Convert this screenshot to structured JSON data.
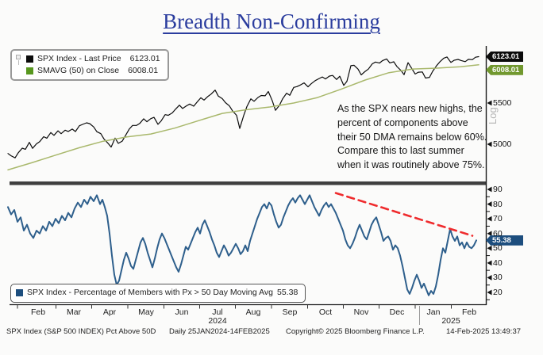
{
  "title": "Breadth Non-Confirming",
  "top_panel": {
    "legend": [
      {
        "swatch_color": "#0b0b0b",
        "label": "SPX Index - Last Price",
        "value": "6123.01"
      },
      {
        "swatch_color": "#57971e",
        "label": "SMAVG (50)  on Close",
        "value": "6008.01"
      }
    ],
    "axis": {
      "scale_label": "Log",
      "ticks": [
        {
          "label": "5500",
          "value": 5500
        },
        {
          "label": "5000",
          "value": 5000
        }
      ]
    },
    "badges": [
      {
        "text": "6123.01",
        "value": 6123.01,
        "bg": "#0b0b0b"
      },
      {
        "text": "6008.01",
        "value": 6008.01,
        "bg": "#71982e"
      }
    ],
    "annotation": "As the SPX nears new highs, the\npercent of components above\ntheir 50 DMA remains below 60%.\nCompare this to last summer\nwhen it was routinely above 75%."
  },
  "bottom_panel": {
    "legend": {
      "swatch_color": "#1d4e7e",
      "label": "SPX Index - Percentage of Members with Px > 50 Day Moving Avg",
      "value": "55.38"
    },
    "axis": {
      "ticks": [
        90,
        80,
        70,
        60,
        50,
        40,
        30,
        20
      ]
    },
    "badge": {
      "text": "55.38",
      "value": 55.38,
      "bg": "#1d4e7e"
    }
  },
  "x_axis": {
    "months": [
      "Feb",
      "Mar",
      "Apr",
      "May",
      "Jun",
      "Jul",
      "Aug",
      "Sep",
      "Oct",
      "Nov",
      "Dec",
      "Jan",
      "Feb"
    ],
    "years": [
      {
        "label": "2024"
      },
      {
        "label": "2025"
      }
    ]
  },
  "footer": {
    "left": "SPX Index (S&P 500 INDEX) Pct Above 50D",
    "daily": "Daily 25JAN2024-14FEB2025",
    "copyright": "Copyright© 2025 Bloomberg Finance L.P.",
    "datetime": "14-Feb-2025 13:49:37"
  },
  "chart_data": [
    {
      "type": "line",
      "panel": "top",
      "name": "SPX Index - Last Price",
      "color": "#0b0b0b",
      "y_scale": "log",
      "ylim": [
        4580,
        6265
      ],
      "visible_ticks": [
        5000,
        5500
      ],
      "last_value": 6123.01,
      "points": [
        [
          10,
          4894
        ],
        [
          14,
          4868
        ],
        [
          19,
          4845
        ],
        [
          23,
          4902
        ],
        [
          28,
          4954
        ],
        [
          32,
          4942
        ],
        [
          37,
          5022
        ],
        [
          41,
          4953
        ],
        [
          46,
          5005
        ],
        [
          50,
          5029
        ],
        [
          55,
          5088
        ],
        [
          59,
          5070
        ],
        [
          64,
          5137
        ],
        [
          68,
          5104
        ],
        [
          73,
          5157
        ],
        [
          77,
          5123
        ],
        [
          82,
          5165
        ],
        [
          86,
          5150
        ],
        [
          91,
          5178
        ],
        [
          95,
          5149
        ],
        [
          100,
          5218
        ],
        [
          104,
          5234
        ],
        [
          109,
          5254
        ],
        [
          113,
          5244
        ],
        [
          118,
          5204
        ],
        [
          122,
          5147
        ],
        [
          127,
          5123
        ],
        [
          131,
          5061
        ],
        [
          136,
          5011
        ],
        [
          140,
          4967
        ],
        [
          145,
          5071
        ],
        [
          149,
          5010
        ],
        [
          154,
          5036
        ],
        [
          158,
          5100
        ],
        [
          163,
          5181
        ],
        [
          167,
          5222
        ],
        [
          172,
          5222
        ],
        [
          176,
          5246
        ],
        [
          181,
          5303
        ],
        [
          185,
          5267
        ],
        [
          190,
          5305
        ],
        [
          194,
          5321
        ],
        [
          199,
          5235
        ],
        [
          203,
          5277
        ],
        [
          208,
          5354
        ],
        [
          212,
          5346
        ],
        [
          217,
          5375
        ],
        [
          221,
          5421
        ],
        [
          226,
          5473
        ],
        [
          230,
          5431
        ],
        [
          235,
          5465
        ],
        [
          239,
          5487
        ],
        [
          244,
          5460
        ],
        [
          248,
          5509
        ],
        [
          253,
          5567
        ],
        [
          257,
          5537
        ],
        [
          262,
          5585
        ],
        [
          266,
          5615
        ],
        [
          271,
          5667
        ],
        [
          275,
          5588
        ],
        [
          280,
          5556
        ],
        [
          284,
          5505
        ],
        [
          289,
          5463
        ],
        [
          293,
          5399
        ],
        [
          298,
          5346
        ],
        [
          302,
          5186
        ],
        [
          307,
          5344
        ],
        [
          311,
          5455
        ],
        [
          316,
          5554
        ],
        [
          320,
          5522
        ],
        [
          325,
          5571
        ],
        [
          329,
          5597
        ],
        [
          334,
          5592
        ],
        [
          338,
          5648
        ],
        [
          343,
          5528
        ],
        [
          347,
          5408
        ],
        [
          352,
          5471
        ],
        [
          356,
          5554
        ],
        [
          361,
          5626
        ],
        [
          365,
          5599
        ],
        [
          370,
          5702
        ],
        [
          374,
          5713
        ],
        [
          379,
          5738
        ],
        [
          383,
          5762
        ],
        [
          388,
          5710
        ],
        [
          392,
          5751
        ],
        [
          397,
          5792
        ],
        [
          401,
          5815
        ],
        [
          406,
          5842
        ],
        [
          410,
          5815
        ],
        [
          415,
          5854
        ],
        [
          419,
          5862
        ],
        [
          424,
          5808
        ],
        [
          428,
          5852
        ],
        [
          433,
          5729
        ],
        [
          437,
          5783
        ],
        [
          442,
          5996
        ],
        [
          446,
          6001
        ],
        [
          451,
          5949
        ],
        [
          455,
          5870
        ],
        [
          460,
          5917
        ],
        [
          464,
          5949
        ],
        [
          469,
          6022
        ],
        [
          473,
          6047
        ],
        [
          478,
          6032
        ],
        [
          482,
          6068
        ],
        [
          487,
          6090
        ],
        [
          491,
          6034
        ],
        [
          496,
          6051
        ],
        [
          500,
          5984
        ],
        [
          505,
          5931
        ],
        [
          509,
          5872
        ],
        [
          514,
          6038
        ],
        [
          518,
          5970
        ],
        [
          523,
          5882
        ],
        [
          527,
          5906
        ],
        [
          532,
          5910
        ],
        [
          536,
          5827
        ],
        [
          541,
          5836
        ],
        [
          545,
          5918
        ],
        [
          550,
          5997
        ],
        [
          554,
          6049
        ],
        [
          559,
          6101
        ],
        [
          563,
          6118
        ],
        [
          568,
          6041
        ],
        [
          572,
          6071
        ],
        [
          577,
          6083
        ],
        [
          581,
          6068
        ],
        [
          586,
          6052
        ],
        [
          590,
          6084
        ],
        [
          595,
          6080
        ],
        [
          599,
          6115
        ],
        [
          603,
          6123
        ]
      ]
    },
    {
      "type": "line",
      "panel": "top",
      "name": "SMAVG (50) on Close",
      "color": "#a9b86c",
      "y_scale": "log",
      "last_value": 6008.01,
      "points": [
        [
          10,
          4712
        ],
        [
          40,
          4790
        ],
        [
          70,
          4875
        ],
        [
          100,
          4960
        ],
        [
          130,
          5035
        ],
        [
          160,
          5085
        ],
        [
          190,
          5120
        ],
        [
          220,
          5190
        ],
        [
          250,
          5280
        ],
        [
          280,
          5370
        ],
        [
          310,
          5415
        ],
        [
          340,
          5450
        ],
        [
          370,
          5500
        ],
        [
          400,
          5570
        ],
        [
          430,
          5680
        ],
        [
          460,
          5800
        ],
        [
          490,
          5900
        ],
        [
          520,
          5950
        ],
        [
          550,
          5962
        ],
        [
          580,
          5982
        ],
        [
          603,
          6008
        ]
      ]
    },
    {
      "type": "line",
      "panel": "bottom",
      "name": "SPX Index - Percentage of Members with Px > 50 Day Moving Avg",
      "color": "#2e5f8c",
      "ylim": [
        12,
        93
      ],
      "last_value": 55.38,
      "points": [
        [
          10,
          78
        ],
        [
          14,
          73
        ],
        [
          18,
          76
        ],
        [
          22,
          68
        ],
        [
          26,
          71
        ],
        [
          30,
          62
        ],
        [
          34,
          66
        ],
        [
          38,
          60
        ],
        [
          42,
          57
        ],
        [
          46,
          62
        ],
        [
          50,
          60
        ],
        [
          54,
          65
        ],
        [
          58,
          62
        ],
        [
          62,
          68
        ],
        [
          66,
          65
        ],
        [
          70,
          70
        ],
        [
          74,
          67
        ],
        [
          78,
          72
        ],
        [
          82,
          69
        ],
        [
          86,
          74
        ],
        [
          90,
          71
        ],
        [
          94,
          77
        ],
        [
          98,
          81
        ],
        [
          102,
          78
        ],
        [
          106,
          83
        ],
        [
          110,
          80
        ],
        [
          114,
          85
        ],
        [
          118,
          82
        ],
        [
          122,
          86
        ],
        [
          126,
          80
        ],
        [
          129,
          83
        ],
        [
          132,
          78
        ],
        [
          135,
          72
        ],
        [
          138,
          60
        ],
        [
          141,
          45
        ],
        [
          144,
          32
        ],
        [
          147,
          25
        ],
        [
          150,
          28
        ],
        [
          153,
          35
        ],
        [
          156,
          42
        ],
        [
          159,
          47
        ],
        [
          162,
          43
        ],
        [
          165,
          38
        ],
        [
          168,
          36
        ],
        [
          171,
          42
        ],
        [
          174,
          48
        ],
        [
          177,
          54
        ],
        [
          180,
          57
        ],
        [
          183,
          53
        ],
        [
          186,
          47
        ],
        [
          189,
          42
        ],
        [
          192,
          37
        ],
        [
          195,
          43
        ],
        [
          198,
          50
        ],
        [
          201,
          56
        ],
        [
          204,
          60
        ],
        [
          207,
          57
        ],
        [
          210,
          53
        ],
        [
          213,
          49
        ],
        [
          216,
          45
        ],
        [
          219,
          41
        ],
        [
          222,
          37
        ],
        [
          225,
          34
        ],
        [
          228,
          39
        ],
        [
          231,
          45
        ],
        [
          234,
          51
        ],
        [
          237,
          49
        ],
        [
          240,
          53
        ],
        [
          243,
          57
        ],
        [
          246,
          61
        ],
        [
          249,
          64
        ],
        [
          252,
          60
        ],
        [
          255,
          66
        ],
        [
          258,
          69
        ],
        [
          261,
          65
        ],
        [
          264,
          61
        ],
        [
          267,
          56
        ],
        [
          270,
          52
        ],
        [
          273,
          47
        ],
        [
          276,
          44
        ],
        [
          279,
          48
        ],
        [
          282,
          52
        ],
        [
          285,
          49
        ],
        [
          288,
          45
        ],
        [
          291,
          47
        ],
        [
          294,
          50
        ],
        [
          297,
          53
        ],
        [
          300,
          50
        ],
        [
          303,
          46
        ],
        [
          306,
          48
        ],
        [
          309,
          52
        ],
        [
          312,
          48
        ],
        [
          315,
          55
        ],
        [
          318,
          60
        ],
        [
          321,
          65
        ],
        [
          324,
          70
        ],
        [
          327,
          74
        ],
        [
          330,
          78
        ],
        [
          333,
          80
        ],
        [
          336,
          77
        ],
        [
          339,
          81
        ],
        [
          342,
          79
        ],
        [
          345,
          73
        ],
        [
          348,
          68
        ],
        [
          351,
          64
        ],
        [
          354,
          66
        ],
        [
          357,
          71
        ],
        [
          360,
          75
        ],
        [
          363,
          79
        ],
        [
          366,
          82
        ],
        [
          369,
          84
        ],
        [
          372,
          81
        ],
        [
          375,
          84
        ],
        [
          378,
          86
        ],
        [
          381,
          83
        ],
        [
          384,
          80
        ],
        [
          387,
          83
        ],
        [
          390,
          86
        ],
        [
          393,
          82
        ],
        [
          396,
          78
        ],
        [
          399,
          75
        ],
        [
          402,
          72
        ],
        [
          405,
          76
        ],
        [
          408,
          79
        ],
        [
          411,
          81
        ],
        [
          414,
          78
        ],
        [
          417,
          80
        ],
        [
          420,
          77
        ],
        [
          423,
          74
        ],
        [
          426,
          70
        ],
        [
          429,
          66
        ],
        [
          432,
          62
        ],
        [
          435,
          56
        ],
        [
          438,
          52
        ],
        [
          441,
          50
        ],
        [
          444,
          53
        ],
        [
          447,
          57
        ],
        [
          450,
          62
        ],
        [
          453,
          66
        ],
        [
          456,
          62
        ],
        [
          459,
          58
        ],
        [
          462,
          56
        ],
        [
          465,
          61
        ],
        [
          468,
          66
        ],
        [
          471,
          69
        ],
        [
          474,
          71
        ],
        [
          477,
          66
        ],
        [
          480,
          61
        ],
        [
          483,
          55
        ],
        [
          486,
          57
        ],
        [
          489,
          58
        ],
        [
          492,
          55
        ],
        [
          495,
          49
        ],
        [
          498,
          52
        ],
        [
          501,
          50
        ],
        [
          504,
          45
        ],
        [
          507,
          38
        ],
        [
          510,
          30
        ],
        [
          513,
          22
        ],
        [
          516,
          19
        ],
        [
          519,
          23
        ],
        [
          522,
          28
        ],
        [
          525,
          32
        ],
        [
          528,
          28
        ],
        [
          531,
          23
        ],
        [
          534,
          26
        ],
        [
          537,
          22
        ],
        [
          540,
          18
        ],
        [
          543,
          21
        ],
        [
          546,
          19
        ],
        [
          549,
          24
        ],
        [
          552,
          32
        ],
        [
          555,
          42
        ],
        [
          558,
          50
        ],
        [
          561,
          47
        ],
        [
          564,
          55
        ],
        [
          567,
          63
        ],
        [
          570,
          58
        ],
        [
          573,
          55
        ],
        [
          576,
          58
        ],
        [
          579,
          52
        ],
        [
          582,
          54
        ],
        [
          585,
          50
        ],
        [
          588,
          54
        ],
        [
          591,
          51
        ],
        [
          594,
          50
        ],
        [
          597,
          52
        ],
        [
          600,
          55.38
        ]
      ]
    },
    {
      "type": "trendline",
      "panel": "bottom",
      "name": "downtrend-annotation",
      "color": "#ef2b2d",
      "dashed": true,
      "points": [
        [
          423,
          87.5
        ],
        [
          595,
          58.5
        ]
      ]
    }
  ]
}
